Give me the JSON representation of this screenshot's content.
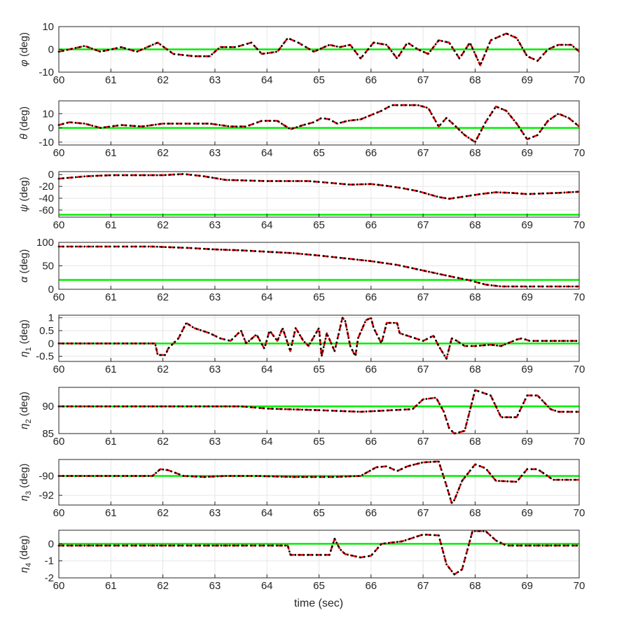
{
  "figure": {
    "xlabel": "time (sec)",
    "colors": {
      "reference": "#00ee00",
      "dashed": "#ee0000",
      "dotted": "#000000",
      "grid": "#e6e6e6",
      "axis": "#262626"
    }
  },
  "chart_data": [
    {
      "type": "line",
      "id": "phi",
      "ylabel": {
        "sym": "φ",
        "sub": "",
        "unit": " (deg)"
      },
      "xlim": [
        60,
        70
      ],
      "ylim": [
        -10,
        10
      ],
      "xticks": [
        60,
        61,
        62,
        63,
        64,
        65,
        66,
        67,
        68,
        69,
        70
      ],
      "yticks": [
        -10,
        0,
        10
      ],
      "grid": true,
      "reference_value": 0,
      "series": [
        {
          "x": [
            60,
            60.5,
            60.8,
            61.2,
            61.5,
            61.9,
            62.2,
            62.6,
            62.9,
            63.1,
            63.4,
            63.7,
            63.9,
            64.2,
            64.4,
            64.6,
            64.9,
            65.2,
            65.4,
            65.6,
            65.8,
            66.05,
            66.3,
            66.5,
            66.7,
            66.9,
            67.1,
            67.3,
            67.5,
            67.7,
            67.9,
            68.1,
            68.3,
            68.6,
            68.8,
            69,
            69.2,
            69.4,
            69.6,
            69.85,
            70
          ],
          "y": [
            -1,
            1.5,
            -1,
            1,
            -1,
            3,
            -2,
            -3,
            -3,
            1,
            1,
            3,
            -2,
            -1,
            5,
            3,
            -1,
            2,
            1,
            2,
            -4,
            3,
            2,
            -4,
            3,
            0,
            -2,
            4,
            3,
            -4,
            3,
            -7,
            4,
            7,
            5,
            -3,
            -5,
            0,
            2,
            2,
            -1
          ]
        }
      ]
    },
    {
      "type": "line",
      "id": "theta",
      "ylabel": {
        "sym": "θ",
        "sub": "",
        "unit": " (deg)"
      },
      "xlim": [
        60,
        70
      ],
      "ylim": [
        -12,
        19
      ],
      "xticks": [
        60,
        61,
        62,
        63,
        64,
        65,
        66,
        67,
        68,
        69,
        70
      ],
      "yticks": [
        -10,
        0,
        10
      ],
      "grid": true,
      "reference_value": 0,
      "series": [
        {
          "x": [
            60,
            60.2,
            60.5,
            60.8,
            61.2,
            61.6,
            62,
            62.5,
            62.9,
            63.3,
            63.6,
            63.9,
            64.2,
            64.45,
            64.7,
            64.9,
            65.05,
            65.2,
            65.35,
            65.55,
            65.8,
            66,
            66.2,
            66.4,
            66.7,
            66.9,
            67.1,
            67.3,
            67.45,
            67.6,
            67.8,
            68,
            68.2,
            68.4,
            68.6,
            68.8,
            69,
            69.2,
            69.4,
            69.6,
            69.8,
            70
          ],
          "y": [
            2,
            4,
            3,
            0,
            2,
            1,
            3,
            3,
            3,
            1,
            1,
            5,
            5,
            -1,
            2,
            4,
            7,
            6,
            3,
            5,
            6,
            9,
            12,
            16,
            16,
            16,
            14,
            1,
            7,
            2,
            -5,
            -10,
            4,
            15,
            12,
            3,
            -8,
            -5,
            5,
            10,
            7,
            1
          ]
        }
      ]
    },
    {
      "type": "line",
      "id": "psi",
      "ylabel": {
        "sym": "ψ",
        "sub": "",
        "unit": " (deg)"
      },
      "xlim": [
        60,
        70
      ],
      "ylim": [
        -72,
        5
      ],
      "xticks": [
        60,
        61,
        62,
        63,
        64,
        65,
        66,
        67,
        68,
        69,
        70
      ],
      "yticks": [
        -60,
        -40,
        -20,
        0
      ],
      "grid": true,
      "reference_value": -68,
      "series": [
        {
          "x": [
            60,
            60.5,
            61,
            61.5,
            62,
            62.4,
            62.8,
            63.2,
            63.6,
            64,
            64.4,
            64.8,
            65.2,
            65.6,
            66,
            66.3,
            66.6,
            66.9,
            67.1,
            67.3,
            67.5,
            67.8,
            68.1,
            68.4,
            68.7,
            69,
            69.3,
            69.6,
            70
          ],
          "y": [
            -7,
            -3,
            -1,
            -1,
            -1,
            1,
            -3,
            -9,
            -10,
            -11,
            -11,
            -11,
            -14,
            -17,
            -16,
            -19,
            -23,
            -28,
            -33,
            -38,
            -41,
            -37,
            -33,
            -30,
            -31,
            -33,
            -32,
            -31,
            -29
          ]
        }
      ]
    },
    {
      "type": "line",
      "id": "alpha",
      "ylabel": {
        "sym": "α",
        "sub": "",
        "unit": " (deg)"
      },
      "xlim": [
        60,
        70
      ],
      "ylim": [
        0,
        100
      ],
      "xticks": [
        60,
        61,
        62,
        63,
        64,
        65,
        66,
        67,
        68,
        69,
        70
      ],
      "yticks": [
        0,
        50,
        100
      ],
      "grid": true,
      "reference_value": 20,
      "series": [
        {
          "x": [
            60,
            61,
            61.8,
            62.5,
            63,
            63.5,
            64,
            64.5,
            65,
            65.5,
            66,
            66.5,
            67,
            67.5,
            67.9,
            68.2,
            68.5,
            69,
            70
          ],
          "y": [
            91,
            91,
            91,
            88,
            85,
            83,
            80,
            77,
            72,
            66,
            60,
            52,
            40,
            28,
            19,
            10,
            6,
            6,
            6
          ]
        }
      ]
    },
    {
      "type": "line",
      "id": "eta1",
      "ylabel": {
        "sym": "η",
        "sub": "1",
        "unit": " (deg)"
      },
      "xlim": [
        60,
        70
      ],
      "ylim": [
        -0.7,
        1.1
      ],
      "xticks": [
        60,
        61,
        62,
        63,
        64,
        65,
        66,
        67,
        68,
        69,
        70
      ],
      "yticks": [
        -0.5,
        0,
        0.5,
        1
      ],
      "grid": true,
      "reference_value": 0,
      "series": [
        {
          "x": [
            60,
            61.85,
            61.9,
            62.05,
            62.1,
            62.3,
            62.45,
            62.6,
            62.75,
            62.9,
            63.1,
            63.3,
            63.5,
            63.6,
            63.8,
            63.95,
            64.05,
            64.2,
            64.3,
            64.45,
            64.55,
            64.7,
            64.8,
            65,
            65.05,
            65.15,
            65.3,
            65.45,
            65.5,
            65.6,
            65.7,
            65.75,
            65.9,
            66,
            66.05,
            66.2,
            66.3,
            66.5,
            66.55,
            66.7,
            66.85,
            67,
            67.2,
            67.3,
            67.45,
            67.55,
            67.65,
            67.8,
            68,
            68.3,
            68.5,
            68.8,
            68.9,
            69.05,
            70
          ],
          "y": [
            0,
            0,
            -0.45,
            -0.45,
            -0.2,
            0.2,
            0.8,
            0.6,
            0.5,
            0.4,
            0.2,
            0.1,
            0.5,
            0,
            0.35,
            -0.2,
            0.5,
            0.1,
            0.6,
            -0.3,
            0.6,
            0.1,
            -0.1,
            0.6,
            -0.5,
            0.4,
            -0.3,
            1,
            0.9,
            -0.1,
            -0.5,
            0.2,
            0.9,
            1.0,
            0.6,
            0,
            0.8,
            0.8,
            0.4,
            0.3,
            0.2,
            0.1,
            0.3,
            -0.1,
            -0.6,
            0.2,
            0.1,
            -0.1,
            -0.1,
            -0.05,
            -0.1,
            0.15,
            0.2,
            0.1,
            0.1
          ]
        }
      ]
    },
    {
      "type": "line",
      "id": "eta2",
      "ylabel": {
        "sym": "η",
        "sub": "2",
        "unit": " (deg)"
      },
      "xlim": [
        60,
        70
      ],
      "ylim": [
        85,
        93.5
      ],
      "xticks": [
        60,
        61,
        62,
        63,
        64,
        65,
        66,
        67,
        68,
        69,
        70
      ],
      "yticks": [
        85,
        90
      ],
      "grid": true,
      "reference_value": 90,
      "series": [
        {
          "x": [
            60,
            62,
            63.5,
            64,
            65,
            65.8,
            66.8,
            67,
            67.25,
            67.4,
            67.5,
            67.6,
            67.8,
            68,
            68.3,
            68.5,
            68.8,
            69,
            69.2,
            69.45,
            69.6,
            70
          ],
          "y": [
            90,
            90,
            90,
            89.6,
            89.3,
            89,
            89.5,
            91.3,
            91.6,
            89,
            86,
            85,
            85.5,
            93,
            92,
            88,
            88,
            92,
            92,
            89.5,
            89,
            89
          ]
        }
      ]
    },
    {
      "type": "line",
      "id": "eta3",
      "ylabel": {
        "sym": "η",
        "sub": "3",
        "unit": " (deg)"
      },
      "xlim": [
        60,
        70
      ],
      "ylim": [
        -93,
        -88.3
      ],
      "xticks": [
        60,
        61,
        62,
        63,
        64,
        65,
        66,
        67,
        68,
        69,
        70
      ],
      "yticks": [
        -92,
        -90
      ],
      "grid": true,
      "reference_value": -90,
      "series": [
        {
          "x": [
            60,
            61.8,
            61.95,
            62.1,
            62.4,
            62.8,
            63.2,
            63.8,
            64.5,
            65.3,
            65.8,
            66.1,
            66.3,
            66.5,
            66.7,
            67,
            67.3,
            67.45,
            67.55,
            67.6,
            67.75,
            68,
            68.2,
            68.4,
            68.8,
            69,
            69.2,
            69.5,
            70
          ],
          "y": [
            -90,
            -90,
            -89.3,
            -89.4,
            -90,
            -90.1,
            -90,
            -90,
            -90.1,
            -90.1,
            -90,
            -89.1,
            -89,
            -89.5,
            -89,
            -88.6,
            -88.5,
            -91,
            -92.8,
            -92.5,
            -90.5,
            -88.8,
            -89.2,
            -90.5,
            -90.6,
            -89.3,
            -89.3,
            -90.4,
            -90.4
          ]
        }
      ]
    },
    {
      "type": "line",
      "id": "eta4",
      "ylabel": {
        "sym": "η",
        "sub": "4",
        "unit": " (deg)"
      },
      "xlim": [
        60,
        70
      ],
      "ylim": [
        -2,
        0.8
      ],
      "xticks": [
        60,
        61,
        62,
        63,
        64,
        65,
        66,
        67,
        68,
        69,
        70
      ],
      "yticks": [
        -2,
        -1,
        0
      ],
      "grid": true,
      "reference_value": 0,
      "series": [
        {
          "x": [
            60,
            64.4,
            64.45,
            65.2,
            65.3,
            65.4,
            65.5,
            65.8,
            66,
            66.2,
            66.6,
            67,
            67.3,
            67.45,
            67.6,
            67.75,
            67.95,
            68.2,
            68.4,
            68.6,
            69,
            70
          ],
          "y": [
            -0.1,
            -0.1,
            -0.65,
            -0.65,
            0.3,
            -0.3,
            -0.6,
            -0.8,
            -0.7,
            0,
            0.15,
            0.55,
            0.5,
            -1.2,
            -1.8,
            -1.5,
            0.75,
            0.75,
            0.2,
            -0.1,
            -0.1,
            -0.1
          ]
        }
      ]
    }
  ]
}
